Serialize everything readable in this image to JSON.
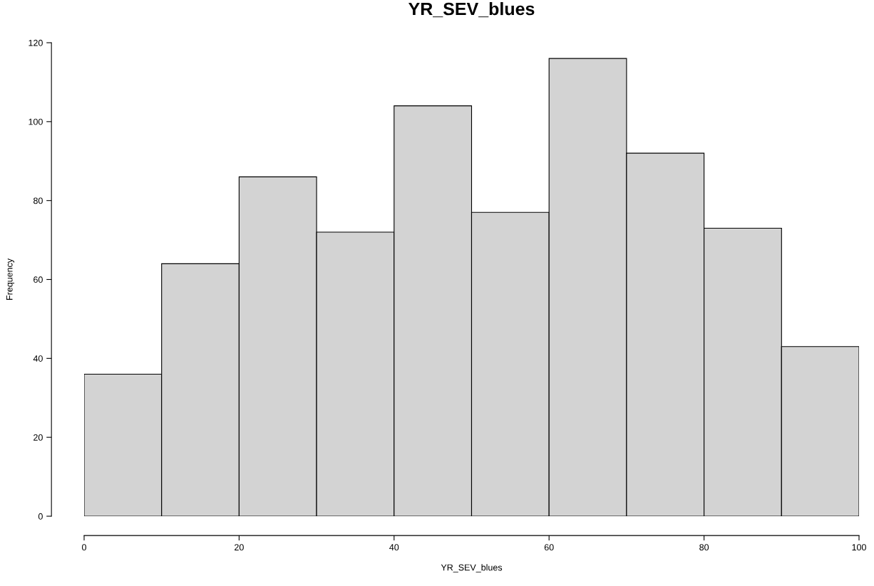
{
  "chart_data": {
    "type": "histogram",
    "title": "YR_SEV_blues",
    "xlabel": "YR_SEV_blues",
    "ylabel": "Frequency",
    "bins": [
      0,
      10,
      20,
      30,
      40,
      50,
      60,
      70,
      80,
      90,
      100
    ],
    "values": [
      36,
      64,
      86,
      72,
      104,
      77,
      116,
      92,
      73,
      43
    ],
    "color": "#d3d3d3",
    "xlim": [
      0,
      100
    ],
    "xticks": [
      0,
      20,
      40,
      60,
      80,
      100
    ],
    "ylim": [
      0,
      120
    ],
    "yticks": [
      0,
      20,
      40,
      60,
      80,
      100,
      120
    ],
    "grid": false
  }
}
